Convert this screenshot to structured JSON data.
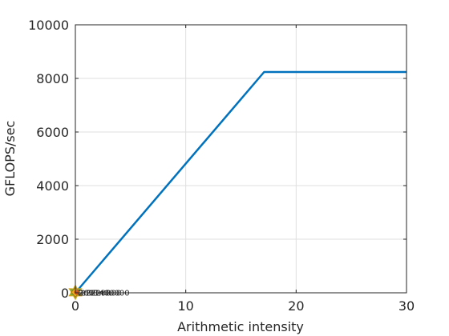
{
  "chart_data": {
    "type": "line",
    "title": "",
    "xlabel": "Arithmetic intensity",
    "ylabel": "GFLOPS/sec",
    "xlim": [
      0,
      30
    ],
    "ylim": [
      0,
      10000
    ],
    "xticks": [
      0,
      10,
      20,
      30
    ],
    "yticks": [
      0,
      2000,
      4000,
      6000,
      8000,
      10000
    ],
    "grid": true,
    "legend": "none",
    "series": [
      {
        "x": [
          0,
          17.1,
          30
        ],
        "y": [
          0,
          8240,
          8240
        ],
        "color": "#0072BD"
      }
    ],
    "points": [
      {
        "x": 0,
        "y": 20,
        "marker": "hexagram",
        "color": "#77AC30",
        "label": "RrDDrrR"
      },
      {
        "x": 0,
        "y": 20,
        "marker": "diamond",
        "color": "#EDB120",
        "label": "2001400000"
      },
      {
        "x": 0.1,
        "y": 20,
        "marker": "circle",
        "color": "#D95319",
        "label": "22220000"
      }
    ]
  }
}
